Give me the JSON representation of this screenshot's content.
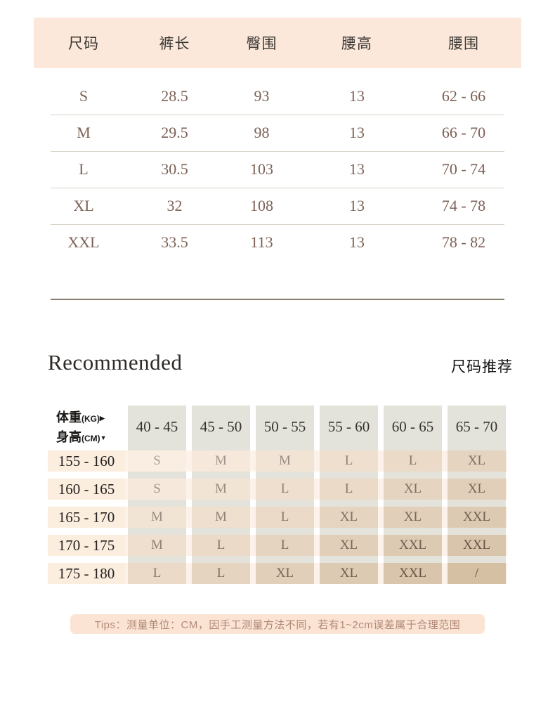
{
  "size_table": {
    "headers": [
      "尺码",
      "裤长",
      "臀围",
      "腰高",
      "腰围"
    ],
    "rows": [
      [
        "S",
        "28.5",
        "93",
        "13",
        "62 - 66"
      ],
      [
        "M",
        "29.5",
        "98",
        "13",
        "66 - 70"
      ],
      [
        "L",
        "30.5",
        "103",
        "13",
        "70 - 74"
      ],
      [
        "XL",
        "32",
        "108",
        "13",
        "74 - 78"
      ],
      [
        "XXL",
        "33.5",
        "113",
        "13",
        "78 - 82"
      ]
    ]
  },
  "recommend": {
    "title_en": "Recommended",
    "title_zh": "尺码推荐",
    "corner": {
      "weight_label": "体重",
      "weight_unit": "(KG)",
      "weight_arrow": "▶",
      "height_label": "身高",
      "height_unit": "(CM)",
      "height_arrow": "▼"
    },
    "weight_ranges": [
      "40 - 45",
      "45 - 50",
      "50 - 55",
      "55 - 60",
      "60 - 65",
      "65 - 70"
    ],
    "rows": [
      {
        "height": "155 - 160",
        "cells": [
          "S",
          "M",
          "M",
          "L",
          "L",
          "XL"
        ]
      },
      {
        "height": "160 - 165",
        "cells": [
          "S",
          "M",
          "L",
          "L",
          "XL",
          "XL"
        ]
      },
      {
        "height": "165 - 170",
        "cells": [
          "M",
          "M",
          "L",
          "XL",
          "XL",
          "XXL"
        ]
      },
      {
        "height": "170 - 175",
        "cells": [
          "M",
          "L",
          "L",
          "XL",
          "XXL",
          "XXL"
        ]
      },
      {
        "height": "175 - 180",
        "cells": [
          "L",
          "L",
          "XL",
          "XL",
          "XXL",
          "/"
        ]
      }
    ]
  },
  "tips": "Tips：测量单位：CM，因手工测量方法不同，若有1~2cm误差属于合理范围",
  "colors": {
    "header_band_bg": "#fce8da",
    "value_text": "#7d6156",
    "column_strip_bg": "#e4e3db",
    "row_strip_bg": "#fdf2e9",
    "label_cell_bg": "#fceede",
    "cell_light": "#faeee3",
    "cell_dark": "#d5c0a4",
    "cell_text_light": "#a89f96",
    "cell_text_dark": "#62493c",
    "tips_bg": "#fce4d5",
    "tips_text": "#b18976"
  }
}
